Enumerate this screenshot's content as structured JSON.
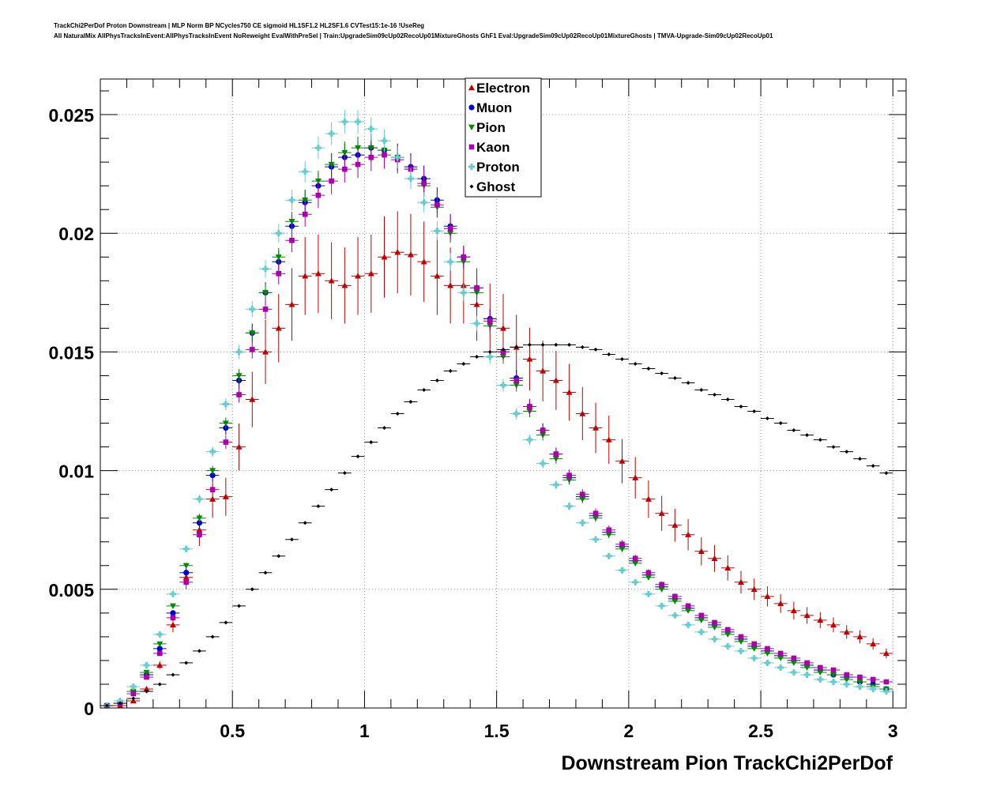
{
  "title": {
    "line1": "TrackChi2PerDof Proton Downstream | MLP Norm BP NCycles750 CE sigmoid HL1SF1.2 HL2SF1.6 CVTest15:1e-16 !UseReg",
    "line2": "All NaturalMix AllPhysTracksInEvent:AllPhysTracksInEvent NoReweight EvalWithPreSel | Train:UpgradeSim09cUp02RecoUp01MixtureGhosts GhF1 Eval:UpgradeSim09cUp02RecoUp01MixtureGhosts | TMVA-Upgrade-Sim09cUp02RecoUp01"
  },
  "chart_data": {
    "type": "scatter",
    "xlabel": "Downstream Pion TrackChi2PerDof",
    "ylabel": "",
    "xlim": [
      0,
      3.05
    ],
    "ylim": [
      0,
      0.0265
    ],
    "xticks": [
      0.5,
      1,
      1.5,
      2,
      2.5,
      3
    ],
    "xtick_labels": [
      "0.5",
      "1",
      "1.5",
      "2",
      "2.5",
      "3"
    ],
    "yticks": [
      0,
      0.005,
      0.01,
      0.015,
      0.02,
      0.025
    ],
    "ytick_labels": [
      "0",
      "0.005",
      "0.01",
      "0.015",
      "0.02",
      "0.025"
    ],
    "grid": true,
    "legend_position": "top-center",
    "x": [
      0.025,
      0.075,
      0.125,
      0.175,
      0.225,
      0.275,
      0.325,
      0.375,
      0.425,
      0.475,
      0.525,
      0.575,
      0.625,
      0.675,
      0.725,
      0.775,
      0.825,
      0.875,
      0.925,
      0.975,
      1.025,
      1.075,
      1.125,
      1.175,
      1.225,
      1.275,
      1.325,
      1.375,
      1.425,
      1.475,
      1.525,
      1.575,
      1.625,
      1.675,
      1.725,
      1.775,
      1.825,
      1.875,
      1.925,
      1.975,
      2.025,
      2.075,
      2.125,
      2.175,
      2.225,
      2.275,
      2.325,
      2.375,
      2.425,
      2.475,
      2.525,
      2.575,
      2.625,
      2.675,
      2.725,
      2.775,
      2.825,
      2.875,
      2.925,
      2.975
    ],
    "series": [
      {
        "name": "Electron",
        "marker": "triangle-up",
        "color": "#c00000",
        "errors": true,
        "values": [
          0.0001,
          0.0001,
          0.0003,
          0.0008,
          0.0018,
          0.0035,
          0.0055,
          0.0075,
          0.0088,
          0.0089,
          0.011,
          0.013,
          0.015,
          0.016,
          0.017,
          0.0182,
          0.0183,
          0.018,
          0.0178,
          0.0182,
          0.0183,
          0.019,
          0.0192,
          0.0191,
          0.0188,
          0.0182,
          0.0178,
          0.0178,
          0.017,
          0.0164,
          0.016,
          0.0152,
          0.0147,
          0.0142,
          0.0138,
          0.0133,
          0.0124,
          0.0118,
          0.0113,
          0.0104,
          0.0097,
          0.0088,
          0.0082,
          0.0077,
          0.0073,
          0.0066,
          0.0063,
          0.0059,
          0.0053,
          0.005,
          0.0047,
          0.0044,
          0.0041,
          0.0039,
          0.0037,
          0.0035,
          0.0032,
          0.003,
          0.0027,
          0.0023
        ]
      },
      {
        "name": "Muon",
        "marker": "circle",
        "color": "#0000cc",
        "errors": true,
        "values": [
          0.0001,
          0.0002,
          0.0007,
          0.0014,
          0.0025,
          0.004,
          0.0057,
          0.0078,
          0.0098,
          0.0118,
          0.0138,
          0.0158,
          0.0175,
          0.0188,
          0.0203,
          0.0213,
          0.022,
          0.0228,
          0.0232,
          0.0233,
          0.0236,
          0.0235,
          0.0232,
          0.0228,
          0.0223,
          0.0214,
          0.0203,
          0.019,
          0.0177,
          0.0164,
          0.015,
          0.0139,
          0.0127,
          0.0117,
          0.0107,
          0.0097,
          0.0089,
          0.0081,
          0.0074,
          0.0068,
          0.0062,
          0.0056,
          0.0051,
          0.0046,
          0.0042,
          0.0038,
          0.0035,
          0.0032,
          0.0029,
          0.0026,
          0.0024,
          0.0022,
          0.002,
          0.0018,
          0.0016,
          0.0014,
          0.0013,
          0.0011,
          0.001,
          0.0008
        ]
      },
      {
        "name": "Pion",
        "marker": "triangle-down",
        "color": "#008800",
        "errors": true,
        "values": [
          0.0001,
          0.0002,
          0.0007,
          0.0015,
          0.0027,
          0.0043,
          0.006,
          0.008,
          0.01,
          0.012,
          0.014,
          0.0158,
          0.0175,
          0.019,
          0.0205,
          0.0214,
          0.0222,
          0.0229,
          0.0234,
          0.0236,
          0.0236,
          0.0235,
          0.0232,
          0.0227,
          0.022,
          0.0211,
          0.02,
          0.0188,
          0.0175,
          0.0161,
          0.0148,
          0.0136,
          0.0125,
          0.0115,
          0.0105,
          0.0096,
          0.0088,
          0.008,
          0.0073,
          0.0067,
          0.0061,
          0.0055,
          0.005,
          0.0045,
          0.0041,
          0.0037,
          0.0034,
          0.0031,
          0.0028,
          0.0025,
          0.0023,
          0.0021,
          0.0019,
          0.0017,
          0.0015,
          0.0014,
          0.0012,
          0.0011,
          0.0009,
          0.0008
        ]
      },
      {
        "name": "Kaon",
        "marker": "square",
        "color": "#aa00aa",
        "errors": true,
        "values": [
          0.0001,
          0.0002,
          0.0006,
          0.0013,
          0.0023,
          0.0038,
          0.0053,
          0.0073,
          0.0092,
          0.0112,
          0.0132,
          0.0151,
          0.0168,
          0.0183,
          0.0197,
          0.0208,
          0.0216,
          0.0222,
          0.0227,
          0.0229,
          0.0232,
          0.0233,
          0.0231,
          0.0227,
          0.0221,
          0.0212,
          0.0202,
          0.019,
          0.0177,
          0.0163,
          0.015,
          0.0138,
          0.0127,
          0.0117,
          0.0107,
          0.0098,
          0.009,
          0.0082,
          0.0075,
          0.0069,
          0.0063,
          0.0057,
          0.0052,
          0.0047,
          0.0043,
          0.0039,
          0.0036,
          0.0033,
          0.003,
          0.0027,
          0.0025,
          0.0023,
          0.0021,
          0.0019,
          0.0017,
          0.0016,
          0.0014,
          0.0013,
          0.0012,
          0.0011
        ]
      },
      {
        "name": "Proton",
        "marker": "cross",
        "color": "#66cccc",
        "errors": true,
        "values": [
          0.0001,
          0.0003,
          0.0009,
          0.0018,
          0.0031,
          0.0048,
          0.0067,
          0.0088,
          0.0108,
          0.0128,
          0.015,
          0.0168,
          0.0185,
          0.02,
          0.0214,
          0.0226,
          0.0236,
          0.0242,
          0.0247,
          0.0247,
          0.0244,
          0.0239,
          0.0232,
          0.0223,
          0.0213,
          0.0201,
          0.0188,
          0.0175,
          0.0162,
          0.0148,
          0.0136,
          0.0124,
          0.0113,
          0.0103,
          0.0094,
          0.0085,
          0.0078,
          0.0071,
          0.0064,
          0.0058,
          0.0053,
          0.0048,
          0.0043,
          0.0039,
          0.0035,
          0.0032,
          0.0029,
          0.0026,
          0.0024,
          0.0021,
          0.0019,
          0.0017,
          0.0015,
          0.0014,
          0.0012,
          0.0011,
          0.001,
          0.0009,
          0.0008,
          0.0007
        ]
      },
      {
        "name": "Ghost",
        "marker": "diamond",
        "color": "#000000",
        "errors": false,
        "values": [
          0.0001,
          0.0002,
          0.0004,
          0.0007,
          0.001,
          0.0014,
          0.0019,
          0.0024,
          0.003,
          0.0036,
          0.0043,
          0.005,
          0.0057,
          0.0064,
          0.0071,
          0.0078,
          0.0085,
          0.0092,
          0.0099,
          0.0106,
          0.0112,
          0.0118,
          0.0124,
          0.0129,
          0.0134,
          0.0138,
          0.0142,
          0.0145,
          0.0148,
          0.015,
          0.0151,
          0.0152,
          0.0153,
          0.0153,
          0.0153,
          0.0153,
          0.0152,
          0.0151,
          0.0149,
          0.0147,
          0.0145,
          0.0143,
          0.0141,
          0.0139,
          0.0137,
          0.0134,
          0.0132,
          0.013,
          0.0127,
          0.0125,
          0.0122,
          0.012,
          0.0117,
          0.0115,
          0.0113,
          0.011,
          0.0108,
          0.0105,
          0.0102,
          0.0099
        ]
      }
    ]
  }
}
